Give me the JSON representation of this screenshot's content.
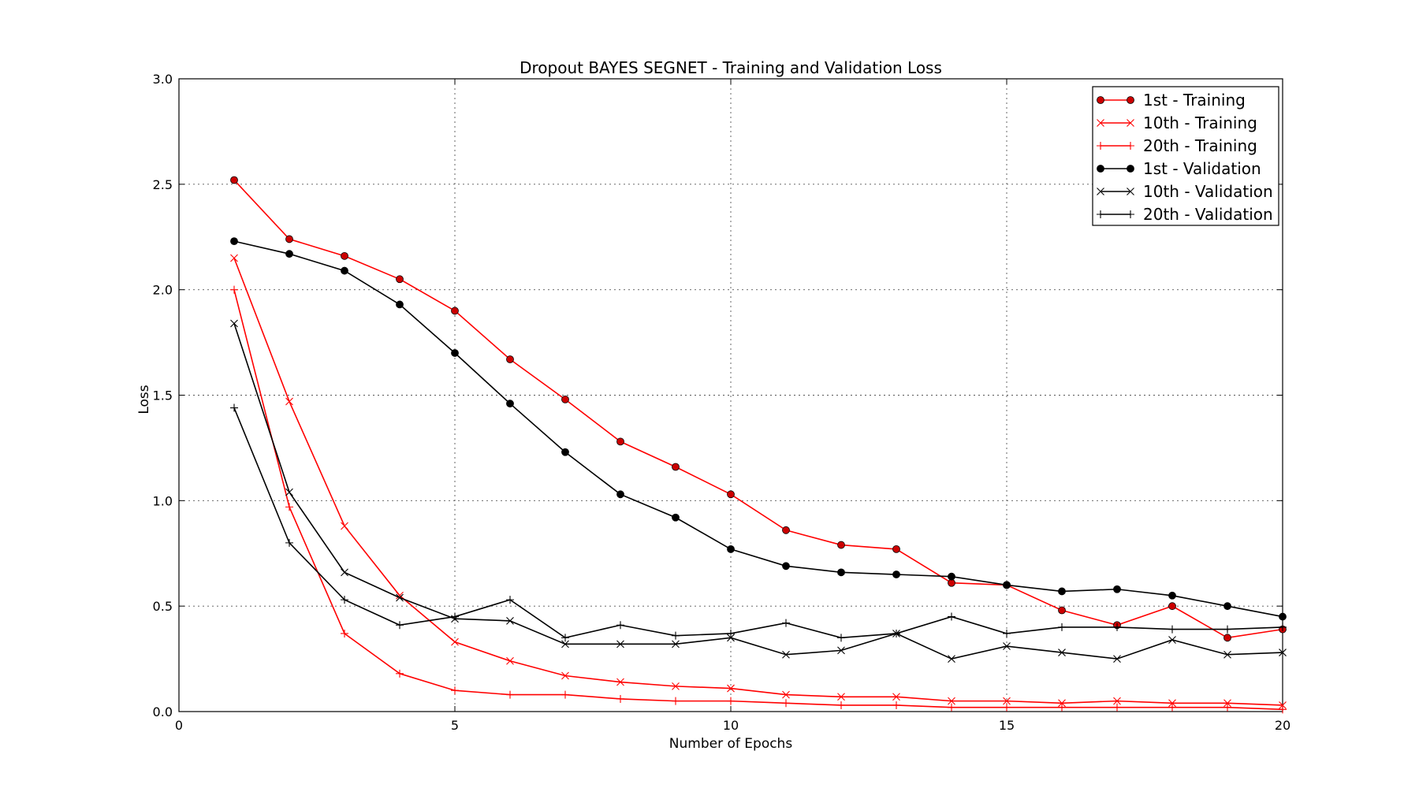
{
  "chart_data": {
    "type": "line",
    "title": "Dropout BAYES SEGNET - Training and Validation Loss",
    "xlabel": "Number of Epochs",
    "ylabel": "Loss",
    "xlim": [
      0,
      20
    ],
    "ylim": [
      0,
      3.0
    ],
    "xticks": [
      0,
      5,
      10,
      15,
      20
    ],
    "yticks": [
      0.0,
      0.5,
      1.0,
      1.5,
      2.0,
      2.5,
      3.0
    ],
    "grid": true,
    "legend_position": "top-right",
    "x": [
      1,
      2,
      3,
      4,
      5,
      6,
      7,
      8,
      9,
      10,
      11,
      12,
      13,
      14,
      15,
      16,
      17,
      18,
      19,
      20
    ],
    "series": [
      {
        "name": "1st - Training",
        "color": "#ff0000",
        "marker": "circle",
        "values": [
          2.52,
          2.24,
          2.16,
          2.05,
          1.9,
          1.67,
          1.48,
          1.28,
          1.16,
          1.03,
          0.86,
          0.79,
          0.77,
          0.61,
          0.6,
          0.48,
          0.41,
          0.5,
          0.35,
          0.39
        ]
      },
      {
        "name": "10th - Training",
        "color": "#ff0000",
        "marker": "x",
        "values": [
          2.15,
          1.47,
          0.88,
          0.55,
          0.33,
          0.24,
          0.17,
          0.14,
          0.12,
          0.11,
          0.08,
          0.07,
          0.07,
          0.05,
          0.05,
          0.04,
          0.05,
          0.04,
          0.04,
          0.03
        ]
      },
      {
        "name": "20th - Training",
        "color": "#ff0000",
        "marker": "plus",
        "values": [
          2.0,
          0.97,
          0.37,
          0.18,
          0.1,
          0.08,
          0.08,
          0.06,
          0.05,
          0.05,
          0.04,
          0.03,
          0.03,
          0.02,
          0.02,
          0.02,
          0.02,
          0.02,
          0.02,
          0.01
        ]
      },
      {
        "name": "1st - Validation",
        "color": "#000000",
        "marker": "circle",
        "values": [
          2.23,
          2.17,
          2.09,
          1.93,
          1.7,
          1.46,
          1.23,
          1.03,
          0.92,
          0.77,
          0.69,
          0.66,
          0.65,
          0.64,
          0.6,
          0.57,
          0.58,
          0.55,
          0.5,
          0.45
        ]
      },
      {
        "name": "10th - Validation",
        "color": "#000000",
        "marker": "x",
        "values": [
          1.84,
          1.04,
          0.66,
          0.54,
          0.44,
          0.43,
          0.32,
          0.32,
          0.32,
          0.35,
          0.27,
          0.29,
          0.37,
          0.25,
          0.31,
          0.28,
          0.25,
          0.34,
          0.27,
          0.28
        ]
      },
      {
        "name": "20th - Validation",
        "color": "#000000",
        "marker": "plus",
        "values": [
          1.44,
          0.8,
          0.53,
          0.41,
          0.45,
          0.53,
          0.35,
          0.41,
          0.36,
          0.37,
          0.42,
          0.35,
          0.37,
          0.45,
          0.37,
          0.4,
          0.4,
          0.39,
          0.39,
          0.4
        ]
      }
    ]
  }
}
